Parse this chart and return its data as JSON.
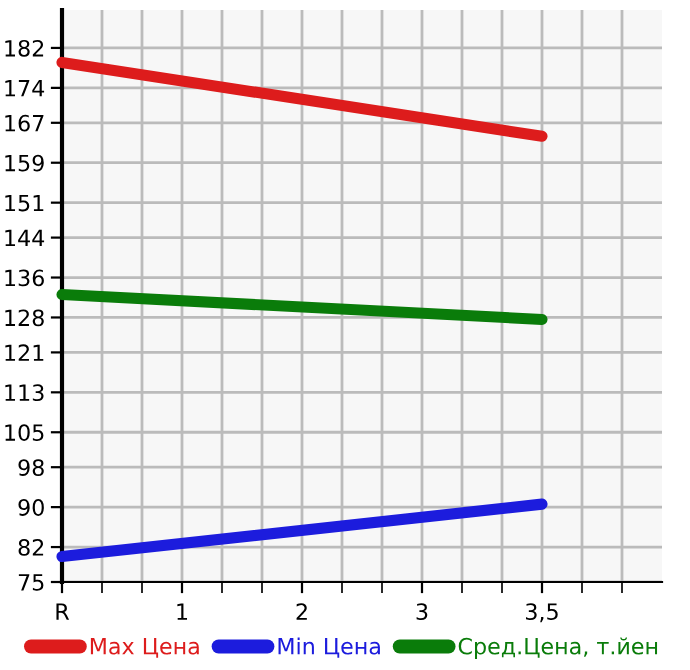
{
  "chart_data": {
    "type": "line",
    "categories": [
      "R",
      "1",
      "2",
      "3",
      "3,5"
    ],
    "series": [
      {
        "name": "Max Цена",
        "color": "#dd1c1c",
        "values": [
          179.1,
          null,
          null,
          null,
          164.3
        ]
      },
      {
        "name": "Min Цена",
        "color": "#1c1cdd",
        "values": [
          80.1,
          null,
          null,
          null,
          90.6
        ]
      },
      {
        "name": "Сред.Цена, т.йен",
        "color": "#0a7c0a",
        "values": [
          132.6,
          null,
          null,
          null,
          127.6
        ]
      }
    ],
    "ylim": [
      75,
      189.6
    ],
    "yticks": [
      75,
      82,
      90,
      98,
      105,
      113,
      121,
      128,
      136,
      144,
      151,
      159,
      167,
      174,
      182
    ],
    "grid": true,
    "legend": "bottom",
    "marker": "none",
    "line_style": "solid"
  }
}
